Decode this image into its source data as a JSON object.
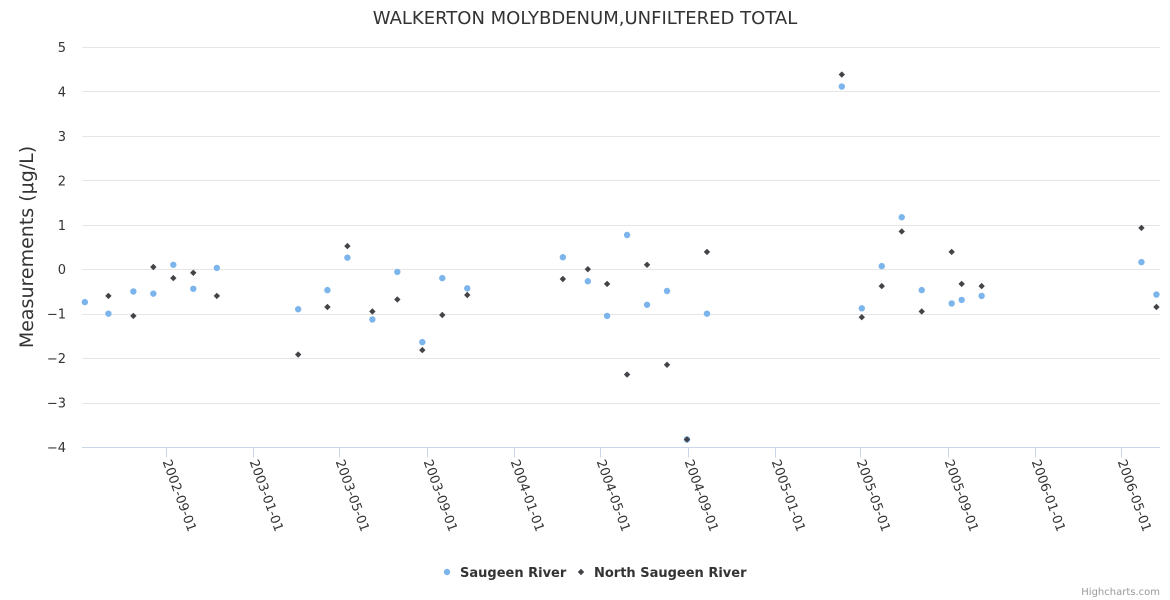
{
  "chart_data": {
    "type": "scatter",
    "title": "WALKERTON MOLYBDENUM,UNFILTERED TOTAL",
    "xlabel": "",
    "ylabel": "Measurements (μg/L)",
    "ylim": [
      -4,
      5
    ],
    "yticks": [
      "5",
      "4",
      "3",
      "2",
      "1",
      "0",
      "−1",
      "−2",
      "−3",
      "−4"
    ],
    "ytick_values": [
      5,
      4,
      3,
      2,
      1,
      0,
      -1,
      -2,
      -3,
      -4
    ],
    "xlim": [
      "2002-05-06",
      "2006-06-25"
    ],
    "xticks": [
      "2002-09-01",
      "2003-01-01",
      "2003-05-01",
      "2003-09-01",
      "2004-01-01",
      "2004-05-01",
      "2004-09-01",
      "2005-01-01",
      "2005-05-01",
      "2005-09-01",
      "2006-01-01",
      "2006-05-01"
    ],
    "legend_position": "bottom-center",
    "credits": "Highcharts.com",
    "series": [
      {
        "name": "Saugeen River",
        "color": "#7cb5ec",
        "marker": "circle",
        "points": [
          {
            "x": "2002-05-10",
            "y": -0.74
          },
          {
            "x": "2002-06-12",
            "y": -1.0
          },
          {
            "x": "2002-07-17",
            "y": -0.5
          },
          {
            "x": "2002-08-14",
            "y": -0.55
          },
          {
            "x": "2002-09-11",
            "y": 0.1
          },
          {
            "x": "2002-10-09",
            "y": -0.44
          },
          {
            "x": "2002-11-11",
            "y": 0.03
          },
          {
            "x": "2003-03-05",
            "y": -0.9
          },
          {
            "x": "2003-04-15",
            "y": -0.47
          },
          {
            "x": "2003-05-13",
            "y": 0.26
          },
          {
            "x": "2003-06-17",
            "y": -1.13
          },
          {
            "x": "2003-07-22",
            "y": -0.06
          },
          {
            "x": "2003-08-26",
            "y": -1.64
          },
          {
            "x": "2003-09-23",
            "y": -0.2
          },
          {
            "x": "2003-10-28",
            "y": -0.43
          },
          {
            "x": "2004-03-10",
            "y": 0.27
          },
          {
            "x": "2004-04-14",
            "y": -0.27
          },
          {
            "x": "2004-05-11",
            "y": -1.05
          },
          {
            "x": "2004-06-08",
            "y": 0.77
          },
          {
            "x": "2004-07-06",
            "y": -0.8
          },
          {
            "x": "2004-08-03",
            "y": -0.49
          },
          {
            "x": "2004-08-31",
            "y": -3.83
          },
          {
            "x": "2004-09-28",
            "y": -1.0
          },
          {
            "x": "2005-04-05",
            "y": 4.11
          },
          {
            "x": "2005-05-03",
            "y": -0.88
          },
          {
            "x": "2005-05-31",
            "y": 0.07
          },
          {
            "x": "2005-06-28",
            "y": 1.17
          },
          {
            "x": "2005-07-26",
            "y": -0.47
          },
          {
            "x": "2005-09-06",
            "y": -0.77
          },
          {
            "x": "2005-09-20",
            "y": -0.69
          },
          {
            "x": "2005-10-18",
            "y": -0.6
          },
          {
            "x": "2006-05-30",
            "y": 0.16
          },
          {
            "x": "2006-06-20",
            "y": -0.57
          }
        ]
      },
      {
        "name": "North Saugeen River",
        "color": "#434348",
        "marker": "diamond",
        "points": [
          {
            "x": "2002-06-12",
            "y": -0.6
          },
          {
            "x": "2002-07-17",
            "y": -1.05
          },
          {
            "x": "2002-08-14",
            "y": 0.05
          },
          {
            "x": "2002-09-11",
            "y": -0.2
          },
          {
            "x": "2002-10-09",
            "y": -0.08
          },
          {
            "x": "2002-11-11",
            "y": -0.6
          },
          {
            "x": "2003-03-05",
            "y": -1.92
          },
          {
            "x": "2003-04-15",
            "y": -0.85
          },
          {
            "x": "2003-05-13",
            "y": 0.52
          },
          {
            "x": "2003-06-17",
            "y": -0.95
          },
          {
            "x": "2003-07-22",
            "y": -0.68
          },
          {
            "x": "2003-08-26",
            "y": -1.82
          },
          {
            "x": "2003-09-23",
            "y": -1.03
          },
          {
            "x": "2003-10-28",
            "y": -0.58
          },
          {
            "x": "2004-03-10",
            "y": -0.22
          },
          {
            "x": "2004-04-14",
            "y": 0.0
          },
          {
            "x": "2004-05-11",
            "y": -0.33
          },
          {
            "x": "2004-06-08",
            "y": -2.37
          },
          {
            "x": "2004-07-06",
            "y": 0.1
          },
          {
            "x": "2004-08-03",
            "y": -2.15
          },
          {
            "x": "2004-08-31",
            "y": -3.83
          },
          {
            "x": "2004-09-28",
            "y": 0.39
          },
          {
            "x": "2005-04-05",
            "y": 4.38
          },
          {
            "x": "2005-05-03",
            "y": -1.08
          },
          {
            "x": "2005-05-31",
            "y": -0.38
          },
          {
            "x": "2005-06-28",
            "y": 0.85
          },
          {
            "x": "2005-07-26",
            "y": -0.95
          },
          {
            "x": "2005-09-06",
            "y": 0.39
          },
          {
            "x": "2005-09-20",
            "y": -0.33
          },
          {
            "x": "2005-10-18",
            "y": -0.38
          },
          {
            "x": "2006-05-30",
            "y": 0.93
          },
          {
            "x": "2006-06-20",
            "y": -0.85
          }
        ]
      }
    ]
  }
}
